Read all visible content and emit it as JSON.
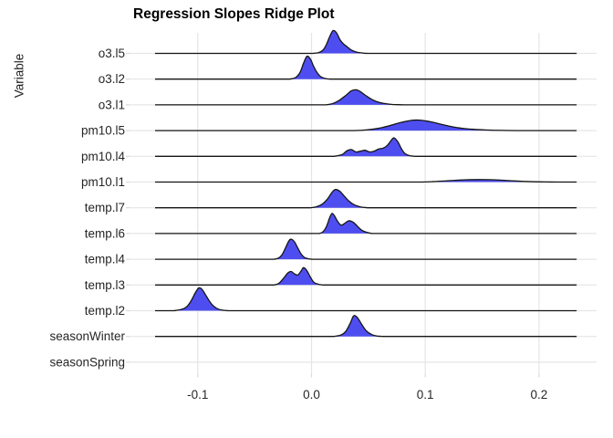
{
  "chart_data": {
    "type": "ridgeline",
    "title": "Regression Slopes Ridge Plot",
    "ylabel": "Variable",
    "xlabel": "",
    "x_ticks": [
      -0.1,
      0.0,
      0.1,
      0.2
    ],
    "x_tick_labels": [
      "-0.1",
      "0.0",
      "0.1",
      "0.2"
    ],
    "xlim": [
      -0.16,
      0.251
    ],
    "line_extent": [
      -0.1375,
      0.233
    ],
    "grid": true,
    "legend": false,
    "colors": {
      "density_fill": "#4E4EF0",
      "density_stroke": "#151515",
      "gridline": "#E5E5E5",
      "tick_mark": "#D9D9D9",
      "axis_text": "#262626",
      "title_text": "#000000",
      "background": "#FFFFFF"
    },
    "series": [
      {
        "name": "o3.l5",
        "peak_x": 0.019,
        "scale": 1.0,
        "has_line": true,
        "curve": [
          [
            0.001,
            0
          ],
          [
            0.006,
            0.03
          ],
          [
            0.01,
            0.14
          ],
          [
            0.013,
            0.38
          ],
          [
            0.016,
            0.74
          ],
          [
            0.019,
            1.0
          ],
          [
            0.022,
            0.9
          ],
          [
            0.025,
            0.6
          ],
          [
            0.028,
            0.42
          ],
          [
            0.031,
            0.3
          ],
          [
            0.035,
            0.15
          ],
          [
            0.04,
            0.05
          ],
          [
            0.046,
            0.01
          ],
          [
            0.051,
            0
          ]
        ]
      },
      {
        "name": "o3.l2",
        "peak_x": -0.004,
        "scale": 1.0,
        "has_line": true,
        "curve": [
          [
            -0.019,
            0
          ],
          [
            -0.014,
            0.07
          ],
          [
            -0.01,
            0.3
          ],
          [
            -0.007,
            0.7
          ],
          [
            -0.004,
            1.0
          ],
          [
            -0.001,
            0.88
          ],
          [
            0.002,
            0.55
          ],
          [
            0.005,
            0.28
          ],
          [
            0.008,
            0.11
          ],
          [
            0.012,
            0.03
          ],
          [
            0.016,
            0
          ]
        ]
      },
      {
        "name": "o3.l1",
        "peak_x": 0.039,
        "scale": 0.66,
        "has_line": true,
        "curve": [
          [
            0.012,
            0
          ],
          [
            0.018,
            0.07
          ],
          [
            0.024,
            0.28
          ],
          [
            0.03,
            0.62
          ],
          [
            0.035,
            0.93
          ],
          [
            0.039,
            1.0
          ],
          [
            0.043,
            0.88
          ],
          [
            0.048,
            0.6
          ],
          [
            0.054,
            0.32
          ],
          [
            0.06,
            0.15
          ],
          [
            0.068,
            0.05
          ],
          [
            0.076,
            0.01
          ],
          [
            0.082,
            0
          ]
        ]
      },
      {
        "name": "pm10.l5",
        "peak_x": 0.092,
        "scale": 0.46,
        "has_line": true,
        "curve": [
          [
            0.038,
            0
          ],
          [
            0.048,
            0.06
          ],
          [
            0.058,
            0.2
          ],
          [
            0.068,
            0.45
          ],
          [
            0.078,
            0.76
          ],
          [
            0.088,
            0.97
          ],
          [
            0.094,
            1.0
          ],
          [
            0.102,
            0.9
          ],
          [
            0.11,
            0.7
          ],
          [
            0.12,
            0.45
          ],
          [
            0.13,
            0.25
          ],
          [
            0.142,
            0.12
          ],
          [
            0.155,
            0.05
          ],
          [
            0.168,
            0.015
          ],
          [
            0.18,
            0
          ]
        ]
      },
      {
        "name": "pm10.l4",
        "peak_x": 0.073,
        "scale": 0.8,
        "has_line": true,
        "curve": [
          [
            0.02,
            0
          ],
          [
            0.027,
            0.1
          ],
          [
            0.031,
            0.3
          ],
          [
            0.035,
            0.37
          ],
          [
            0.039,
            0.24
          ],
          [
            0.043,
            0.28
          ],
          [
            0.047,
            0.33
          ],
          [
            0.051,
            0.24
          ],
          [
            0.055,
            0.28
          ],
          [
            0.059,
            0.4
          ],
          [
            0.063,
            0.45
          ],
          [
            0.067,
            0.62
          ],
          [
            0.071,
            0.95
          ],
          [
            0.073,
            1.0
          ],
          [
            0.076,
            0.78
          ],
          [
            0.079,
            0.42
          ],
          [
            0.082,
            0.16
          ],
          [
            0.086,
            0.04
          ],
          [
            0.091,
            0
          ]
        ]
      },
      {
        "name": "pm10.l1",
        "peak_x": 0.148,
        "scale": 0.33,
        "has_line": true,
        "curve": [
          [
            0.096,
            0
          ],
          [
            0.106,
            0.05
          ],
          [
            0.116,
            0.13
          ],
          [
            0.126,
            0.23
          ],
          [
            0.136,
            0.3
          ],
          [
            0.146,
            0.33
          ],
          [
            0.156,
            0.32
          ],
          [
            0.166,
            0.26
          ],
          [
            0.176,
            0.17
          ],
          [
            0.186,
            0.09
          ],
          [
            0.196,
            0.04
          ],
          [
            0.206,
            0.015
          ],
          [
            0.216,
            0
          ]
        ]
      },
      {
        "name": "temp.l7",
        "peak_x": 0.021,
        "scale": 0.8,
        "has_line": true,
        "curve": [
          [
            -0.001,
            0
          ],
          [
            0.004,
            0.05
          ],
          [
            0.009,
            0.18
          ],
          [
            0.014,
            0.48
          ],
          [
            0.018,
            0.84
          ],
          [
            0.021,
            1.0
          ],
          [
            0.025,
            0.9
          ],
          [
            0.029,
            0.62
          ],
          [
            0.033,
            0.36
          ],
          [
            0.038,
            0.15
          ],
          [
            0.043,
            0.05
          ],
          [
            0.049,
            0
          ]
        ]
      },
      {
        "name": "temp.l6",
        "peak_x": 0.018,
        "scale": 0.88,
        "has_line": true,
        "curve": [
          [
            0.007,
            0
          ],
          [
            0.01,
            0.08
          ],
          [
            0.013,
            0.33
          ],
          [
            0.016,
            0.8
          ],
          [
            0.018,
            1.0
          ],
          [
            0.02,
            0.9
          ],
          [
            0.023,
            0.6
          ],
          [
            0.026,
            0.42
          ],
          [
            0.029,
            0.5
          ],
          [
            0.032,
            0.62
          ],
          [
            0.034,
            0.63
          ],
          [
            0.037,
            0.55
          ],
          [
            0.04,
            0.38
          ],
          [
            0.044,
            0.17
          ],
          [
            0.049,
            0.05
          ],
          [
            0.053,
            0
          ]
        ]
      },
      {
        "name": "temp.l4",
        "peak_x": -0.018,
        "scale": 0.88,
        "has_line": true,
        "curve": [
          [
            -0.033,
            0
          ],
          [
            -0.029,
            0.06
          ],
          [
            -0.026,
            0.22
          ],
          [
            -0.023,
            0.55
          ],
          [
            -0.02,
            0.9
          ],
          [
            -0.018,
            1.0
          ],
          [
            -0.015,
            0.87
          ],
          [
            -0.012,
            0.55
          ],
          [
            -0.009,
            0.25
          ],
          [
            -0.006,
            0.08
          ],
          [
            -0.002,
            0.015
          ],
          [
            0.001,
            0
          ]
        ]
      },
      {
        "name": "temp.l3",
        "peak_x": -0.007,
        "scale": 0.76,
        "has_line": true,
        "curve": [
          [
            -0.033,
            0
          ],
          [
            -0.029,
            0.08
          ],
          [
            -0.025,
            0.35
          ],
          [
            -0.021,
            0.68
          ],
          [
            -0.018,
            0.78
          ],
          [
            -0.015,
            0.64
          ],
          [
            -0.012,
            0.58
          ],
          [
            -0.009,
            0.82
          ],
          [
            -0.007,
            1.0
          ],
          [
            -0.004,
            0.82
          ],
          [
            -0.001,
            0.45
          ],
          [
            0.002,
            0.16
          ],
          [
            0.006,
            0.04
          ],
          [
            0.01,
            0
          ]
        ]
      },
      {
        "name": "temp.l2",
        "peak_x": -0.099,
        "scale": 1.0,
        "has_line": true,
        "curve": [
          [
            -0.121,
            0
          ],
          [
            -0.115,
            0.05
          ],
          [
            -0.11,
            0.16
          ],
          [
            -0.106,
            0.42
          ],
          [
            -0.102,
            0.8
          ],
          [
            -0.099,
            1.0
          ],
          [
            -0.096,
            0.92
          ],
          [
            -0.092,
            0.6
          ],
          [
            -0.088,
            0.3
          ],
          [
            -0.084,
            0.12
          ],
          [
            -0.079,
            0.03
          ],
          [
            -0.073,
            0
          ]
        ]
      },
      {
        "name": "seasonWinter",
        "peak_x": 0.037,
        "scale": 0.9,
        "has_line": true,
        "curve": [
          [
            0.02,
            0
          ],
          [
            0.026,
            0.07
          ],
          [
            0.03,
            0.24
          ],
          [
            0.034,
            0.64
          ],
          [
            0.037,
            1.0
          ],
          [
            0.04,
            0.94
          ],
          [
            0.044,
            0.6
          ],
          [
            0.048,
            0.28
          ],
          [
            0.053,
            0.09
          ],
          [
            0.058,
            0.02
          ],
          [
            0.063,
            0
          ]
        ]
      },
      {
        "name": "seasonSpring",
        "peak_x": null,
        "scale": 0,
        "has_line": false,
        "curve": []
      }
    ]
  }
}
